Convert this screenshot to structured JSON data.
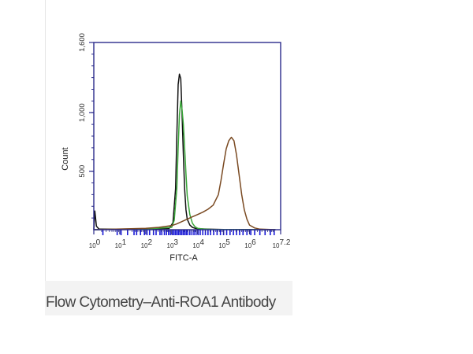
{
  "caption": "Flow Cytometry–Anti-ROA1 Antibody",
  "chart_data": {
    "type": "line",
    "xlabel": "FITC-A",
    "ylabel": "Count",
    "x_scale": "log",
    "xlim": [
      0,
      7.2
    ],
    "ylim": [
      0,
      1600
    ],
    "x_ticks": [
      {
        "pos": 0,
        "base": "10",
        "exp": "0"
      },
      {
        "pos": 1,
        "base": "10",
        "exp": "1"
      },
      {
        "pos": 2,
        "base": "10",
        "exp": "2"
      },
      {
        "pos": 3,
        "base": "10",
        "exp": "3"
      },
      {
        "pos": 4,
        "base": "10",
        "exp": "4"
      },
      {
        "pos": 5,
        "base": "10",
        "exp": "5"
      },
      {
        "pos": 6,
        "base": "10",
        "exp": "6"
      },
      {
        "pos": 7.2,
        "base": "10",
        "exp": "7.2"
      }
    ],
    "y_ticks": [
      {
        "value": 500,
        "label": "500"
      },
      {
        "value": 1000,
        "label": "1,000"
      },
      {
        "value": 1600,
        "label": "1,600"
      }
    ],
    "colors": {
      "axis": "#2b2b8c",
      "rug": "#1a1ad6",
      "series_black": "#111111",
      "series_green": "#3aa63a",
      "series_brown": "#7a4a22"
    },
    "series": [
      {
        "color": "#111111",
        "x": [
          0,
          0.04,
          0.1,
          0.2,
          1.0,
          2.0,
          2.9,
          3.05,
          3.15,
          3.2,
          3.25,
          3.3,
          3.35,
          3.4,
          3.45,
          3.5,
          3.55,
          3.6,
          3.7,
          3.8,
          3.9,
          4.0,
          4.5,
          5.0,
          6.0,
          7.0
        ],
        "y": [
          0,
          160,
          30,
          5,
          5,
          6,
          10,
          60,
          350,
          800,
          1240,
          1330,
          1290,
          1000,
          640,
          350,
          170,
          90,
          40,
          20,
          12,
          8,
          4,
          2,
          1,
          0
        ]
      },
      {
        "color": "#3aa63a",
        "x": [
          0,
          1.0,
          2.0,
          3.0,
          3.1,
          3.2,
          3.25,
          3.3,
          3.35,
          3.4,
          3.45,
          3.5,
          3.55,
          3.6,
          3.7,
          3.8,
          3.9,
          4.0,
          4.2,
          4.5,
          5.0,
          6.0,
          7.0
        ],
        "y": [
          0,
          4,
          6,
          20,
          80,
          350,
          700,
          980,
          1100,
          1030,
          900,
          700,
          480,
          290,
          130,
          55,
          25,
          12,
          6,
          3,
          2,
          1,
          0
        ]
      },
      {
        "color": "#7a4a22",
        "x": [
          0,
          1.0,
          2.0,
          2.5,
          3.0,
          3.2,
          3.4,
          3.6,
          3.8,
          4.0,
          4.2,
          4.4,
          4.6,
          4.8,
          4.9,
          5.0,
          5.1,
          5.2,
          5.3,
          5.4,
          5.5,
          5.6,
          5.7,
          5.8,
          5.9,
          6.0,
          6.2,
          6.4,
          7.0
        ],
        "y": [
          0,
          6,
          12,
          20,
          35,
          50,
          70,
          90,
          110,
          130,
          150,
          175,
          210,
          300,
          420,
          560,
          690,
          760,
          790,
          760,
          640,
          470,
          300,
          170,
          90,
          40,
          15,
          5,
          0
        ]
      }
    ],
    "rug": [
      0.35,
      0.9,
      1.05,
      1.3,
      1.55,
      1.65,
      1.8,
      1.95,
      2.05,
      2.15,
      2.3,
      2.4,
      2.55,
      2.62,
      2.72,
      2.8,
      2.88,
      2.95,
      3.02,
      3.08,
      3.14,
      3.2,
      3.26,
      3.32,
      3.38,
      3.44,
      3.5,
      3.56,
      3.62,
      3.7,
      3.78,
      3.86,
      3.94,
      4.02,
      4.1,
      4.2,
      4.3,
      4.4,
      4.5,
      4.62,
      4.75,
      4.88,
      5.0,
      5.12,
      5.25,
      5.38,
      5.5,
      5.62,
      5.75,
      5.9,
      6.05,
      6.2,
      6.4,
      6.6,
      6.8,
      6.95
    ]
  }
}
